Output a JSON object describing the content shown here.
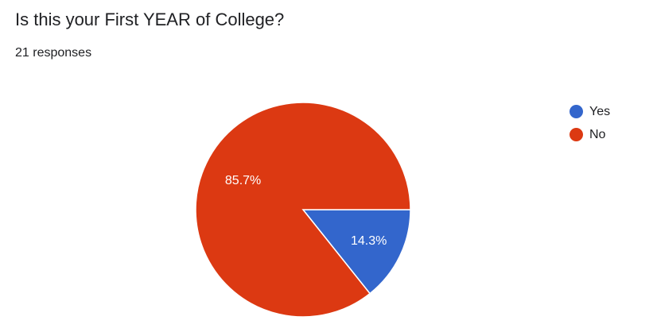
{
  "header": {
    "title": "Is this your First YEAR of College?",
    "responses": "21 responses"
  },
  "chart_data": {
    "type": "pie",
    "categories": [
      "Yes",
      "No"
    ],
    "values": [
      14.3,
      85.7
    ],
    "labels": [
      "14.3%",
      "85.7%"
    ],
    "colors": [
      "#3366cc",
      "#dc3912"
    ],
    "legend_position": "right",
    "start_angle": "3 o'clock, clockwise"
  }
}
